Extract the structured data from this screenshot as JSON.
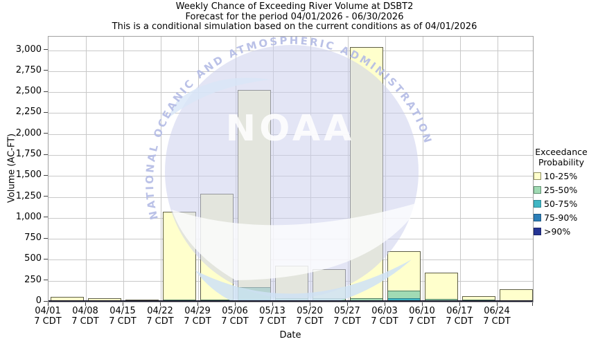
{
  "title_lines": [
    "Weekly Chance of Exceeding River Volume at DSBT2",
    "Forecast for the period 04/01/2026 - 06/30/2026",
    "This is a conditional simulation based on the current conditions as of 04/01/2026"
  ],
  "watermark": {
    "ring_text": "NATIONAL OCEANIC AND ATMOSPHERIC ADMINISTRATION",
    "center_text": "NOAA"
  },
  "legend": {
    "title_line1": "Exceedance",
    "title_line2": "Probability",
    "items": [
      {
        "label": "10-25%",
        "color": "#FFFFCC",
        "edge": "#8f8f5f"
      },
      {
        "label": "25-50%",
        "color": "#A1DAB4",
        "edge": "#5f8f6f"
      },
      {
        "label": "50-75%",
        "color": "#41B6C4",
        "edge": "#2d8a96"
      },
      {
        "label": "75-90%",
        "color": "#2C7FB8",
        "edge": "#1f5a85"
      },
      {
        "label": ">90%",
        "color": "#253494",
        "edge": "#1a2468"
      }
    ]
  },
  "chart_data": {
    "type": "bar",
    "stacked": true,
    "title": "Weekly Chance of Exceeding River Volume at DSBT2",
    "subtitle": "Forecast for the period 04/01/2026 - 06/30/2026",
    "note": "This is a conditional simulation based on the current conditions as of 04/01/2026",
    "xlabel": "Date",
    "ylabel": "Volume (AC-FT)",
    "ylim": [
      0,
      3163
    ],
    "ytick_step": 250,
    "ytick_values": [
      0,
      250,
      500,
      750,
      1000,
      1250,
      1500,
      1750,
      2000,
      2250,
      2500,
      2750,
      3000
    ],
    "ytick_labels": [
      "0",
      "250",
      "500",
      "750",
      "1,000",
      "1,250",
      "1,500",
      "1,750",
      "2,000",
      "2,250",
      "2,500",
      "2,750",
      "3,000"
    ],
    "grid": true,
    "legend_position": "right",
    "categories": [
      {
        "date": "04/01",
        "time": "7 CDT"
      },
      {
        "date": "04/08",
        "time": "7 CDT"
      },
      {
        "date": "04/15",
        "time": "7 CDT"
      },
      {
        "date": "04/22",
        "time": "7 CDT"
      },
      {
        "date": "04/29",
        "time": "7 CDT"
      },
      {
        "date": "05/06",
        "time": "7 CDT"
      },
      {
        "date": "05/13",
        "time": "7 CDT"
      },
      {
        "date": "05/20",
        "time": "7 CDT"
      },
      {
        "date": "05/27",
        "time": "7 CDT"
      },
      {
        "date": "06/03",
        "time": "7 CDT"
      },
      {
        "date": "06/10",
        "time": "7 CDT"
      },
      {
        "date": "06/17",
        "time": "7 CDT"
      },
      {
        "date": "06/24",
        "time": "7 CDT"
      }
    ],
    "series_note": "values are cumulative stack tops in AC-FT; each exceedance band spans from the previous (higher-probability) top up to its own top",
    "series": [
      {
        "name": "10-25%",
        "color": "#FFFFCC",
        "edge": "#5d5d45",
        "cumulative_tops": [
          60,
          45,
          22,
          1075,
          1285,
          2530,
          430,
          385,
          3040,
          600,
          350,
          70,
          145
        ]
      },
      {
        "name": "25-50%",
        "color": "#A1DAB4",
        "edge": "#4f7d62",
        "cumulative_tops": [
          18,
          14,
          14,
          22,
          28,
          172,
          45,
          42,
          40,
          130,
          36,
          22,
          20
        ]
      },
      {
        "name": "50-75%",
        "color": "#41B6C4",
        "edge": "#27808d",
        "cumulative_tops": [
          10,
          8,
          8,
          10,
          12,
          22,
          14,
          14,
          16,
          38,
          12,
          10,
          11
        ]
      },
      {
        "name": "75-90%",
        "color": "#2C7FB8",
        "edge": "#1d5a80",
        "cumulative_tops": [
          7,
          6,
          5,
          6,
          7,
          12,
          8,
          8,
          9,
          14,
          7,
          6,
          6
        ]
      },
      {
        "name": ">90%",
        "color": "#253494",
        "edge": "#16205e",
        "cumulative_tops": [
          5,
          4,
          3,
          4,
          5,
          6,
          5,
          5,
          5,
          7,
          4,
          3,
          3
        ]
      }
    ]
  }
}
